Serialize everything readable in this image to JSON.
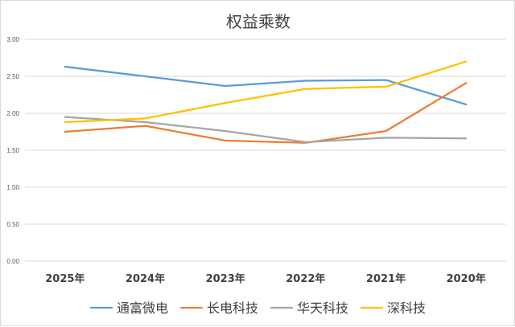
{
  "chart_data": {
    "type": "line",
    "title": "权益乘数",
    "categories": [
      "2025年",
      "2024年",
      "2023年",
      "2022年",
      "2021年",
      "2020年"
    ],
    "ylim": [
      0,
      3
    ],
    "yticks": [
      "0.00",
      "0.50",
      "1.00",
      "1.50",
      "2.00",
      "2.50",
      "3.00"
    ],
    "grid": true,
    "legend_position": "bottom",
    "series": [
      {
        "name": "通富微电",
        "color": "#5B9BD5",
        "values": [
          2.63,
          2.5,
          2.37,
          2.44,
          2.45,
          2.12
        ]
      },
      {
        "name": "长电科技",
        "color": "#ED7D31",
        "values": [
          1.75,
          1.83,
          1.63,
          1.6,
          1.76,
          2.41
        ]
      },
      {
        "name": "华天科技",
        "color": "#A5A5A5",
        "values": [
          1.95,
          1.88,
          1.76,
          1.61,
          1.67,
          1.66
        ]
      },
      {
        "name": "深科技",
        "color": "#FFC000",
        "values": [
          1.88,
          1.93,
          2.14,
          2.33,
          2.36,
          2.7
        ]
      }
    ]
  }
}
